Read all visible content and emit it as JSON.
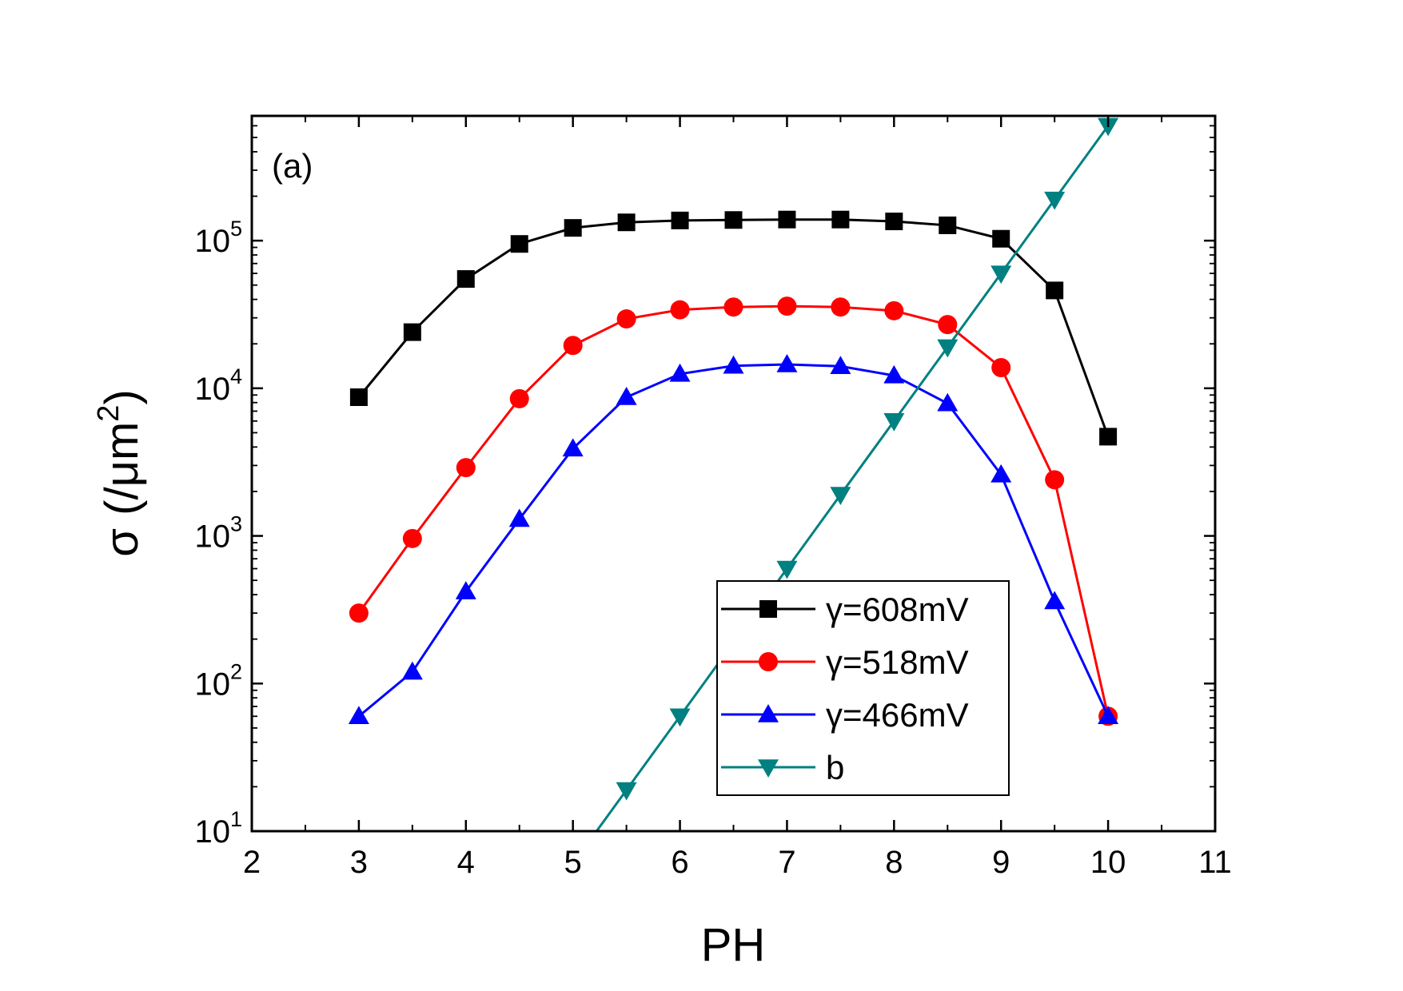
{
  "chart_data": {
    "type": "line",
    "panel_label": "(a)",
    "xlabel": "PH",
    "ylabel": "σ (/μm²)",
    "ylabel_prefix": "σ (/μm",
    "ylabel_superscript": "2",
    "ylabel_suffix": ")",
    "xlim": [
      2,
      11
    ],
    "ylim": [
      10,
      700000
    ],
    "yscale": "log",
    "xticks": [
      2,
      3,
      4,
      5,
      6,
      7,
      8,
      9,
      10,
      11
    ],
    "xtick_labels": [
      "2",
      "3",
      "4",
      "5",
      "6",
      "7",
      "8",
      "9",
      "10",
      "11"
    ],
    "yticks": [
      {
        "value": 10,
        "base": "10",
        "exp": "1"
      },
      {
        "value": 100,
        "base": "10",
        "exp": "2"
      },
      {
        "value": 1000,
        "base": "10",
        "exp": "3"
      },
      {
        "value": 10000,
        "base": "10",
        "exp": "4"
      },
      {
        "value": 100000,
        "base": "10",
        "exp": "5"
      }
    ],
    "legend_position": "lower-right",
    "series": [
      {
        "name": "γ=608mV",
        "color": "#000000",
        "marker": "square",
        "x": [
          3,
          3.5,
          4,
          4.5,
          5,
          5.5,
          6,
          6.5,
          7,
          7.5,
          8,
          8.5,
          9,
          9.5,
          10
        ],
        "y": [
          8700,
          24000,
          55000,
          95000,
          122000,
          133000,
          137000,
          138000,
          139000,
          139000,
          135000,
          127000,
          103000,
          46000,
          4700
        ]
      },
      {
        "name": "γ=518mV",
        "color": "#ff0000",
        "marker": "circle",
        "x": [
          3,
          3.5,
          4,
          4.5,
          5,
          5.5,
          6,
          6.5,
          7,
          7.5,
          8,
          8.5,
          9,
          9.5,
          10
        ],
        "y": [
          300,
          960,
          2900,
          8500,
          19500,
          29500,
          34000,
          35500,
          36000,
          35500,
          33500,
          27000,
          13800,
          2400,
          60
        ]
      },
      {
        "name": "γ=466mV",
        "color": "#0000ff",
        "marker": "triangle-up",
        "x": [
          3,
          3.5,
          4,
          4.5,
          5,
          5.5,
          6,
          6.5,
          7,
          7.5,
          8,
          8.5,
          9,
          9.5,
          10
        ],
        "y": [
          60,
          120,
          420,
          1300,
          3900,
          8700,
          12500,
          14200,
          14500,
          14100,
          12200,
          7900,
          2600,
          360,
          60
        ]
      },
      {
        "name": "b",
        "color": "#008080",
        "marker": "triangle-down",
        "x": [
          5.5,
          6,
          6.5,
          7,
          7.5,
          8,
          8.5,
          9,
          9.5,
          10
        ],
        "y": [
          19,
          60,
          190,
          600,
          1900,
          6000,
          19000,
          60000,
          190000,
          600000
        ]
      }
    ]
  }
}
